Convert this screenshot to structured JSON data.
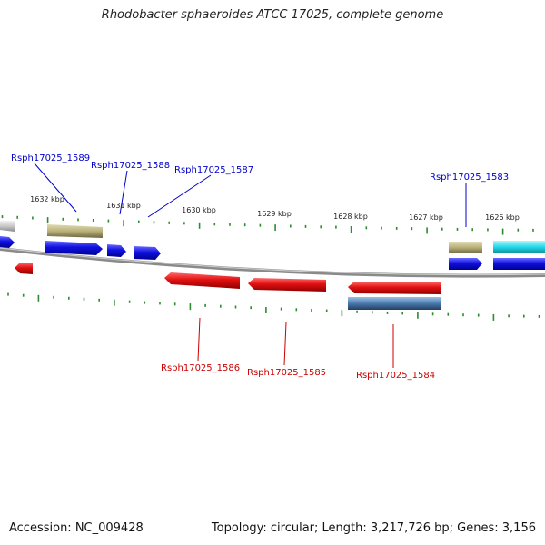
{
  "title": "Rhodobacter sphaeroides ATCC 17025, complete genome",
  "footer": {
    "accession": "Accession: NC_009428",
    "info": "Topology: circular; Length: 3,217,726 bp; Genes: 3,156"
  },
  "colors": {
    "forward_gene": "#1010e0",
    "reverse_gene": "#e01010",
    "rna_khaki": "#b8b07a",
    "cyan_feature": "#22d8e8",
    "steelblue_feature": "#4a7ab0",
    "grey_feature": "#c8c8c8",
    "backbone": "#8a8a8a",
    "tick": "#2e8b2e",
    "forward_label": "#0000cc",
    "reverse_label": "#cc0000"
  },
  "kbp_ticks": [
    {
      "kbp": 1632,
      "label": "1632 kbp"
    },
    {
      "kbp": 1631,
      "label": "1631 kbp"
    },
    {
      "kbp": 1630,
      "label": "1630 kbp"
    },
    {
      "kbp": 1629,
      "label": "1629 kbp"
    },
    {
      "kbp": 1628,
      "label": "1628 kbp"
    },
    {
      "kbp": 1627,
      "label": "1627 kbp"
    },
    {
      "kbp": 1626,
      "label": "1626 kbp"
    }
  ],
  "forward_labels": [
    "Rsph17025_1589",
    "Rsph17025_1588",
    "Rsph17025_1587",
    "Rsph17025_1583"
  ],
  "reverse_labels": [
    "Rsph17025_1586",
    "Rsph17025_1585",
    "Rsph17025_1584"
  ]
}
